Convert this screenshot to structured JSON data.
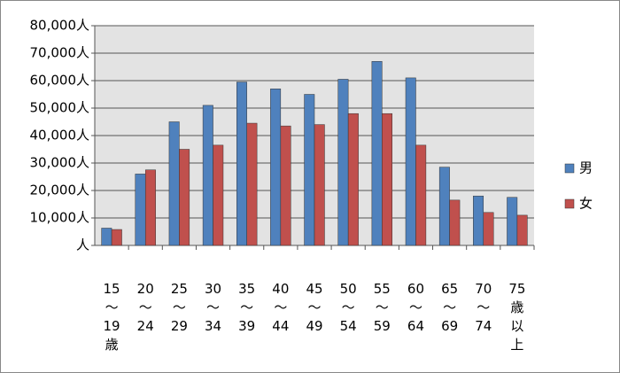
{
  "chart_data": {
    "type": "bar",
    "categories": [
      "15\n～\n19\n歳",
      "20\n～\n24",
      "25\n～\n29",
      "30\n～\n34",
      "35\n～\n39",
      "40\n～\n44",
      "45\n～\n49",
      "50\n～\n54",
      "55\n～\n59",
      "60\n～\n64",
      "65\n～\n69",
      "70\n～\n74",
      "75\n歳\n以\n上"
    ],
    "series": [
      {
        "name": "男",
        "color": "#4f81bd",
        "values": [
          6300,
          26000,
          45000,
          51000,
          59500,
          57000,
          55000,
          60500,
          67000,
          61000,
          28500,
          18000,
          17500
        ]
      },
      {
        "name": "女",
        "color": "#c0504d",
        "values": [
          5800,
          27500,
          35000,
          36500,
          44500,
          43500,
          44000,
          48000,
          48000,
          36500,
          16500,
          12000,
          11000
        ]
      }
    ],
    "ylim": [
      0,
      80000
    ],
    "yticks": [
      {
        "value": 0,
        "label": "人"
      },
      {
        "value": 10000,
        "label": "10,000人"
      },
      {
        "value": 20000,
        "label": "20,000人"
      },
      {
        "value": 30000,
        "label": "30,000人"
      },
      {
        "value": 40000,
        "label": "40,000人"
      },
      {
        "value": 50000,
        "label": "50,000人"
      },
      {
        "value": 60000,
        "label": "60,000人"
      },
      {
        "value": 70000,
        "label": "70,000人"
      },
      {
        "value": 80000,
        "label": "80,000人"
      }
    ],
    "grid": true,
    "legend": "right"
  }
}
